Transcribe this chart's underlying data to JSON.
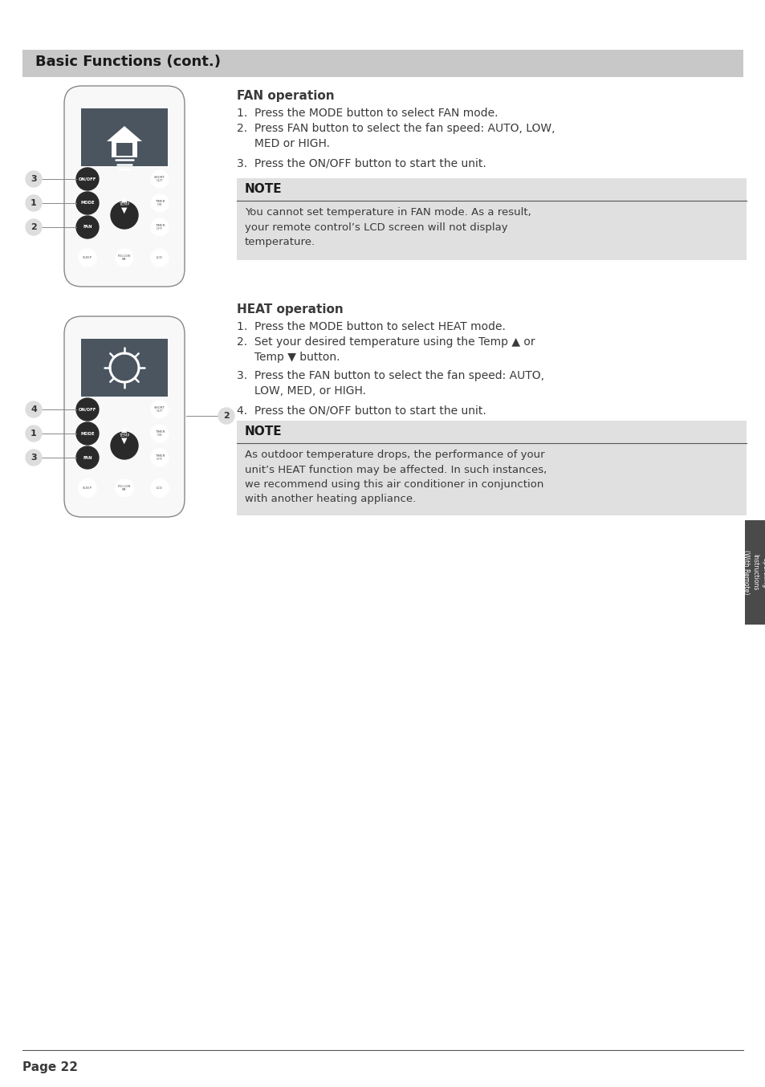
{
  "bg_color": "#ffffff",
  "header_bg": "#c8c8c8",
  "header_text": "Basic Functions (cont.)",
  "header_text_color": "#1a1a1a",
  "note_bg": "#e0e0e0",
  "note_header_bg": "#e0e0e0",
  "note_line_color": "#555555",
  "note_title_color": "#1a1a1a",
  "body_text_color": "#3a3a3a",
  "section1_title": "FAN operation",
  "section1_step1": "1.  Press the MODE button to select FAN mode.",
  "section1_step2a": "2.  Press FAN button to select the fan speed: AUTO, LOW,",
  "section1_step2b": "     MED or HIGH.",
  "section1_step3": "3.  Press the ON/OFF button to start the unit.",
  "section1_note_title": "NOTE",
  "section1_note_text": "You cannot set temperature in FAN mode. As a result,\nyour remote control’s LCD screen will not display\ntemperature.",
  "section2_title": "HEAT operation",
  "section2_step1": "1.  Press the MODE button to select HEAT mode.",
  "section2_step2a": "2.  Set your desired temperature using the Temp ▲ or",
  "section2_step2b": "     Temp ▼ button.",
  "section2_step3a": "3.  Press the FAN button to select the fan speed: AUTO,",
  "section2_step3b": "     LOW, MED, or HIGH.",
  "section2_step4": "4.  Press the ON/OFF button to start the unit.",
  "section2_note_title": "NOTE",
  "section2_note_text": "As outdoor temperature drops, the performance of your\nunit’s HEAT function may be affected. In such instances,\nwe recommend using this air conditioner in conjunction\nwith another heating appliance.",
  "sidebar_text": "Operating\nInstructions\n(With Remote)",
  "sidebar_bg": "#4a4a4a",
  "sidebar_text_color": "#ffffff",
  "page_text": "Page 22",
  "remote_fill": "#f8f8f8",
  "remote_edge": "#888888",
  "remote_screen_fill": "#4a5560",
  "btn_dark": "#2a2a2a",
  "btn_light_edge": "#888888"
}
